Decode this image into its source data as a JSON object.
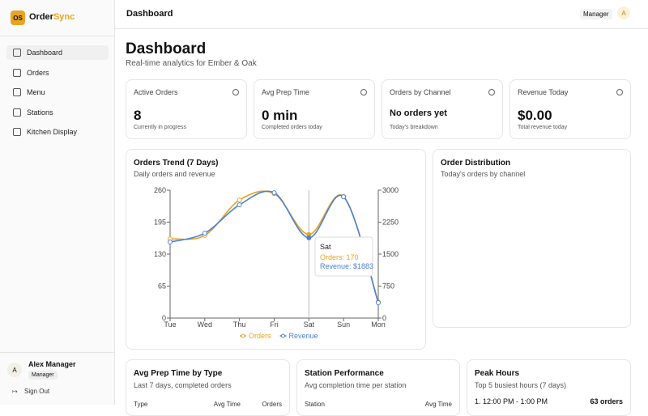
{
  "app": {
    "logo": "OS",
    "name_part1": "Order",
    "name_part2": "Sync"
  },
  "nav": [
    "Dashboard",
    "Orders",
    "Menu",
    "Stations",
    "Kitchen Display"
  ],
  "user": {
    "avatar": "A",
    "name": "Alex Manager",
    "role": "Manager",
    "sign_out": "Sign Out"
  },
  "header": {
    "title": "Dashboard",
    "role": "Manager",
    "avatar": "A"
  },
  "page": {
    "title": "Dashboard",
    "subtitle": "Real-time analytics for Ember & Oak"
  },
  "cards": [
    {
      "label": "Active Orders",
      "value": "8",
      "note": "Currently in progress"
    },
    {
      "label": "Avg Prep Time",
      "value": "0 min",
      "note": "Completed orders today"
    },
    {
      "label": "Orders by Channel",
      "value": "No orders yet",
      "note": "Today's breakdown"
    },
    {
      "label": "Revenue Today",
      "value": "$0.00",
      "note": "Total revenue today"
    }
  ],
  "chart_data": {
    "type": "line",
    "title": "Orders Trend (7 Days)",
    "subtitle": "Daily orders and revenue",
    "categories": [
      "Tue",
      "Wed",
      "Thu",
      "Fri",
      "Sat",
      "Sun",
      "Mon"
    ],
    "series": [
      {
        "name": "Orders",
        "color": "#e9a41f",
        "values": [
          161,
          168,
          240,
          253,
          170,
          247,
          33
        ]
      },
      {
        "name": "Revenue",
        "color": "#4a80d6",
        "axis": "y2",
        "values": [
          1784,
          1992,
          2657,
          2941,
          1883,
          2846,
          360
        ]
      }
    ],
    "ylim": [
      0,
      260
    ],
    "yticks": [
      0,
      65,
      130,
      195,
      260
    ],
    "y2lim": [
      0,
      3000
    ],
    "y2ticks": [
      0,
      750,
      1500,
      2250,
      3000
    ],
    "grid": false,
    "legend": "bottom",
    "tooltip": {
      "category": "Sat",
      "lines": [
        "Orders: 170",
        "Revenue: $1883"
      ]
    }
  },
  "distribution": {
    "title": "Order Distribution",
    "subtitle": "Today's orders by channel"
  },
  "panels": [
    {
      "title": "Avg Prep Time by Type",
      "subtitle": "Last 7 days, completed orders",
      "columns": [
        "Type",
        "Avg Time",
        "Orders"
      ]
    },
    {
      "title": "Station Performance",
      "subtitle": "Avg completion time per station",
      "columns": [
        "Station",
        "Avg Time"
      ]
    },
    {
      "title": "Peak Hours",
      "subtitle": "Top 5 busiest hours (7 days)",
      "rows": [
        [
          "1. 12:00 PM - 1:00 PM",
          "63 orders"
        ]
      ]
    }
  ]
}
